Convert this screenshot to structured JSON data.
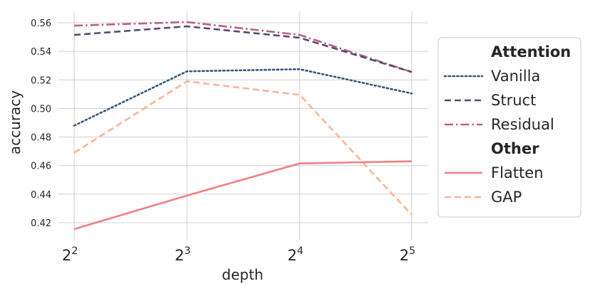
{
  "chart_data": {
    "type": "line",
    "xlabel": "depth",
    "ylabel": "accuracy",
    "x": [
      2,
      3,
      4,
      5
    ],
    "x_tick_labels": [
      {
        "base": "2",
        "exp": "2"
      },
      {
        "base": "2",
        "exp": "3"
      },
      {
        "base": "2",
        "exp": "4"
      },
      {
        "base": "2",
        "exp": "5"
      }
    ],
    "y_ticks": [
      "0.42",
      "0.44",
      "0.46",
      "0.48",
      "0.50",
      "0.52",
      "0.54",
      "0.56"
    ],
    "ylim": [
      0.41,
      0.567
    ],
    "grid": true,
    "legend_position": "right",
    "groups": [
      {
        "title": "Attention",
        "series": [
          {
            "name": "Vanilla",
            "values": [
              0.488,
              0.526,
              0.5275,
              0.5105
            ],
            "color": "#35577a",
            "dash": "dotted"
          },
          {
            "name": "Struct",
            "values": [
              0.5515,
              0.5575,
              0.5495,
              0.5255
            ],
            "color": "#5a4a6e",
            "dash": "dashed"
          },
          {
            "name": "Residual",
            "values": [
              0.558,
              0.5605,
              0.5515,
              0.5255
            ],
            "color": "#b5647e",
            "dash": "dashdot"
          }
        ]
      },
      {
        "title": "Other",
        "series": [
          {
            "name": "Flatten",
            "values": [
              0.4155,
              0.439,
              0.4615,
              0.463
            ],
            "color": "#f17f80",
            "dash": "solid"
          },
          {
            "name": "GAP",
            "values": [
              0.469,
              0.519,
              0.5095,
              0.4255
            ],
            "color": "#f6b598",
            "dash": "dashed"
          }
        ]
      }
    ]
  }
}
